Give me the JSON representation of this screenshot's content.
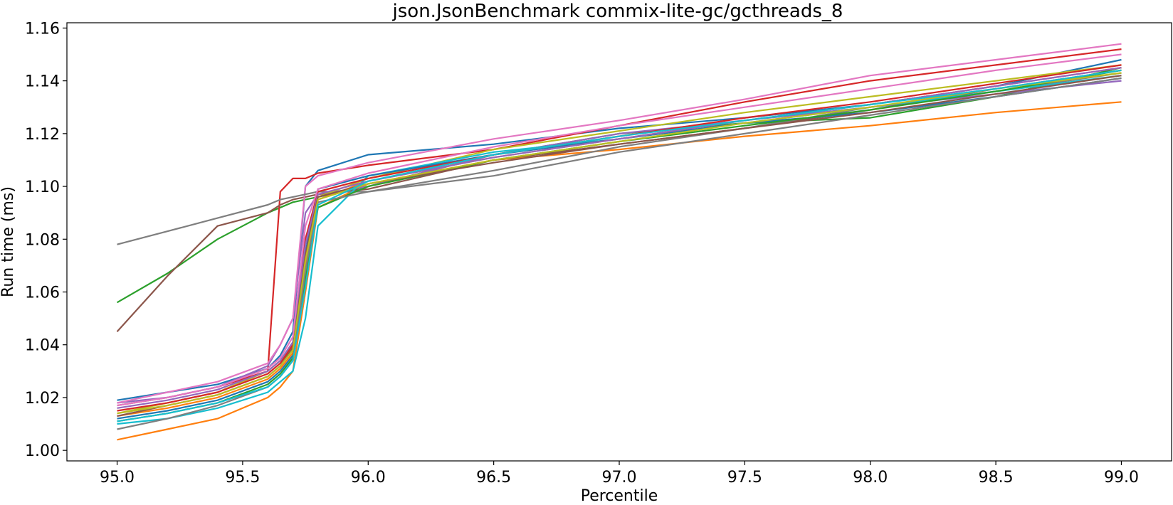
{
  "chart_data": {
    "type": "line",
    "title": "json.JsonBenchmark commix-lite-gc/gcthreads_8",
    "xlabel": "Percentile",
    "ylabel": "Run time (ms)",
    "xlim": [
      94.8,
      99.2
    ],
    "ylim": [
      0.996,
      1.162
    ],
    "xticks": [
      "95.0",
      "95.5",
      "96.0",
      "96.5",
      "97.0",
      "97.5",
      "98.0",
      "98.5",
      "99.0"
    ],
    "yticks": [
      "1.00",
      "1.02",
      "1.04",
      "1.06",
      "1.08",
      "1.10",
      "1.12",
      "1.14",
      "1.16"
    ],
    "grid": false,
    "legend": "none",
    "x": [
      95.0,
      95.2,
      95.4,
      95.6,
      95.65,
      95.7,
      95.75,
      95.8,
      96.0,
      96.5,
      97.0,
      97.5,
      98.0,
      98.5,
      99.0
    ],
    "series": [
      {
        "color": "#1f77b4",
        "values": [
          1.019,
          1.022,
          1.025,
          1.031,
          1.036,
          1.045,
          1.1,
          1.106,
          1.112,
          1.116,
          1.122,
          1.126,
          1.131,
          1.138,
          1.148
        ]
      },
      {
        "color": "#ff7f0e",
        "values": [
          1.004,
          1.008,
          1.012,
          1.02,
          1.024,
          1.03,
          1.06,
          1.092,
          1.101,
          1.11,
          1.114,
          1.119,
          1.123,
          1.128,
          1.132
        ]
      },
      {
        "color": "#2ca02c",
        "values": [
          1.056,
          1.067,
          1.08,
          1.09,
          1.092,
          1.094,
          1.095,
          1.096,
          1.1,
          1.112,
          1.12,
          1.124,
          1.126,
          1.134,
          1.145
        ]
      },
      {
        "color": "#d62728",
        "values": [
          1.017,
          1.02,
          1.024,
          1.03,
          1.098,
          1.103,
          1.103,
          1.105,
          1.108,
          1.114,
          1.123,
          1.132,
          1.14,
          1.146,
          1.152
        ]
      },
      {
        "color": "#9467bd",
        "values": [
          1.018,
          1.02,
          1.024,
          1.032,
          1.04,
          1.05,
          1.09,
          1.097,
          1.1,
          1.112,
          1.12,
          1.125,
          1.13,
          1.135,
          1.14
        ]
      },
      {
        "color": "#8c564b",
        "values": [
          1.045,
          1.066,
          1.085,
          1.09,
          1.093,
          1.095,
          1.096,
          1.097,
          1.099,
          1.11,
          1.116,
          1.122,
          1.129,
          1.137,
          1.144
        ]
      },
      {
        "color": "#e377c2",
        "values": [
          1.018,
          1.022,
          1.026,
          1.033,
          1.04,
          1.05,
          1.1,
          1.104,
          1.109,
          1.118,
          1.125,
          1.133,
          1.142,
          1.148,
          1.154
        ]
      },
      {
        "color": "#7f7f7f",
        "values": [
          1.078,
          1.083,
          1.088,
          1.093,
          1.095,
          1.096,
          1.097,
          1.098,
          1.098,
          1.106,
          1.115,
          1.122,
          1.13,
          1.136,
          1.143
        ]
      },
      {
        "color": "#bcbd22",
        "values": [
          1.014,
          1.018,
          1.022,
          1.03,
          1.034,
          1.04,
          1.08,
          1.096,
          1.103,
          1.114,
          1.121,
          1.128,
          1.134,
          1.14,
          1.146
        ]
      },
      {
        "color": "#17becf",
        "values": [
          1.01,
          1.012,
          1.016,
          1.022,
          1.026,
          1.03,
          1.05,
          1.085,
          1.104,
          1.113,
          1.118,
          1.124,
          1.13,
          1.136,
          1.142
        ]
      },
      {
        "color": "#1f77b4",
        "values": [
          1.012,
          1.015,
          1.019,
          1.026,
          1.03,
          1.036,
          1.075,
          1.099,
          1.104,
          1.112,
          1.118,
          1.124,
          1.128,
          1.134,
          1.141
        ]
      },
      {
        "color": "#ff7f0e",
        "values": [
          1.013,
          1.016,
          1.02,
          1.027,
          1.031,
          1.037,
          1.07,
          1.095,
          1.102,
          1.111,
          1.118,
          1.125,
          1.131,
          1.138,
          1.145
        ]
      },
      {
        "color": "#2ca02c",
        "values": [
          1.011,
          1.014,
          1.018,
          1.025,
          1.029,
          1.035,
          1.065,
          1.092,
          1.1,
          1.11,
          1.117,
          1.123,
          1.129,
          1.136,
          1.144
        ]
      },
      {
        "color": "#d62728",
        "values": [
          1.015,
          1.018,
          1.022,
          1.029,
          1.033,
          1.04,
          1.08,
          1.098,
          1.103,
          1.112,
          1.119,
          1.126,
          1.132,
          1.139,
          1.146
        ]
      },
      {
        "color": "#9467bd",
        "values": [
          1.016,
          1.019,
          1.023,
          1.03,
          1.034,
          1.041,
          1.078,
          1.097,
          1.102,
          1.111,
          1.118,
          1.125,
          1.131,
          1.138,
          1.145
        ]
      },
      {
        "color": "#8c564b",
        "values": [
          1.013,
          1.017,
          1.021,
          1.028,
          1.032,
          1.039,
          1.074,
          1.096,
          1.101,
          1.109,
          1.116,
          1.122,
          1.128,
          1.135,
          1.142
        ]
      },
      {
        "color": "#e377c2",
        "values": [
          1.017,
          1.02,
          1.024,
          1.031,
          1.035,
          1.043,
          1.085,
          1.099,
          1.105,
          1.115,
          1.123,
          1.13,
          1.137,
          1.144,
          1.15
        ]
      },
      {
        "color": "#7f7f7f",
        "values": [
          1.008,
          1.012,
          1.017,
          1.024,
          1.028,
          1.034,
          1.068,
          1.094,
          1.098,
          1.104,
          1.113,
          1.12,
          1.127,
          1.134,
          1.141
        ]
      },
      {
        "color": "#bcbd22",
        "values": [
          1.014,
          1.017,
          1.021,
          1.028,
          1.032,
          1.038,
          1.072,
          1.095,
          1.101,
          1.11,
          1.117,
          1.124,
          1.13,
          1.137,
          1.143
        ]
      },
      {
        "color": "#17becf",
        "values": [
          1.011,
          1.014,
          1.018,
          1.024,
          1.028,
          1.034,
          1.062,
          1.093,
          1.102,
          1.112,
          1.119,
          1.125,
          1.131,
          1.137,
          1.144
        ]
      }
    ]
  }
}
